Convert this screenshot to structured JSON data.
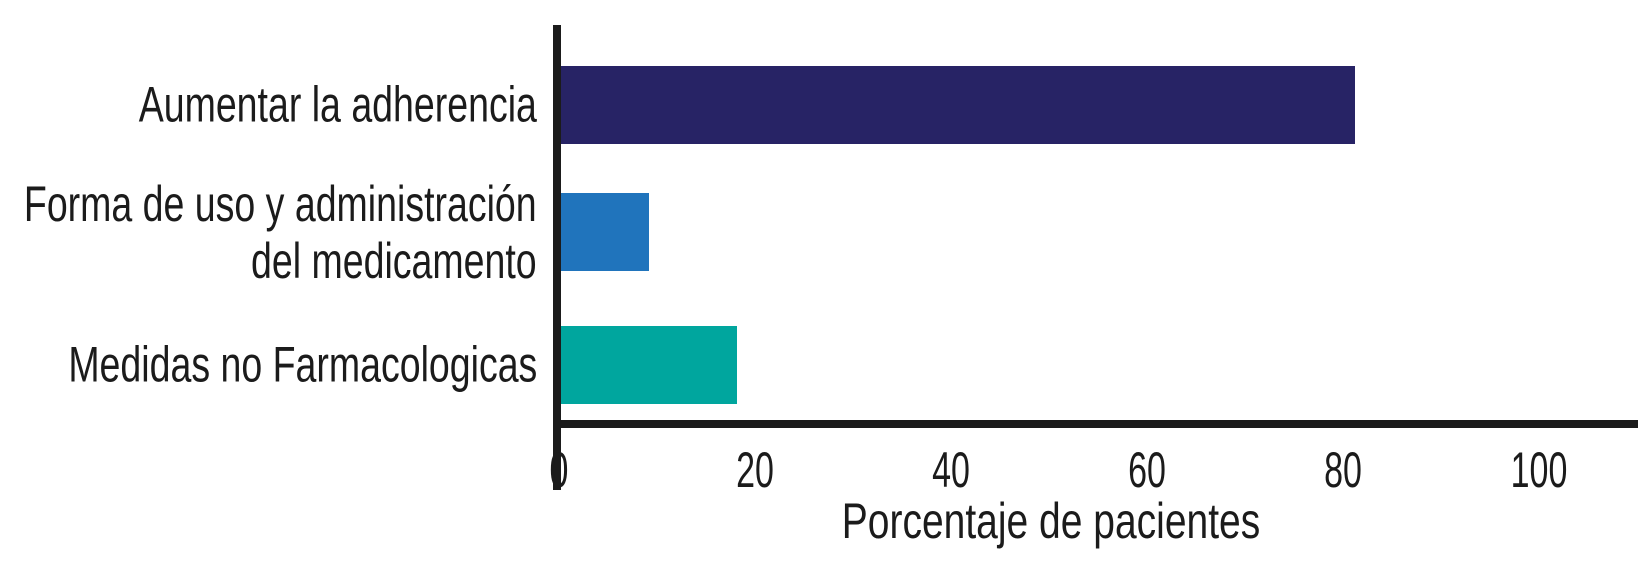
{
  "chart_data": {
    "type": "bar",
    "orientation": "horizontal",
    "title": "",
    "xlabel": "Porcentaje de pacientes",
    "categories": [
      "Aumentar la adherencia",
      "Forma de uso y administración del medicamento",
      "Medidas no Farmacologicas"
    ],
    "category_lines": [
      [
        "Aumentar la adherencia"
      ],
      [
        "Forma de uso y administración",
        "del medicamento"
      ],
      [
        "Medidas no Farmacologicas"
      ]
    ],
    "values": [
      81,
      9,
      18
    ],
    "x_ticks": [
      "0",
      "20",
      "40",
      "60",
      "80",
      "100"
    ],
    "xlim": [
      0,
      110
    ],
    "bar_colors": [
      "#272365",
      "#2074bc",
      "#00a69e"
    ],
    "axis_color": "#1b1b1b",
    "text_color": "#1b1b1b",
    "background": "#ffffff",
    "grid": false,
    "legend_position": "none"
  }
}
